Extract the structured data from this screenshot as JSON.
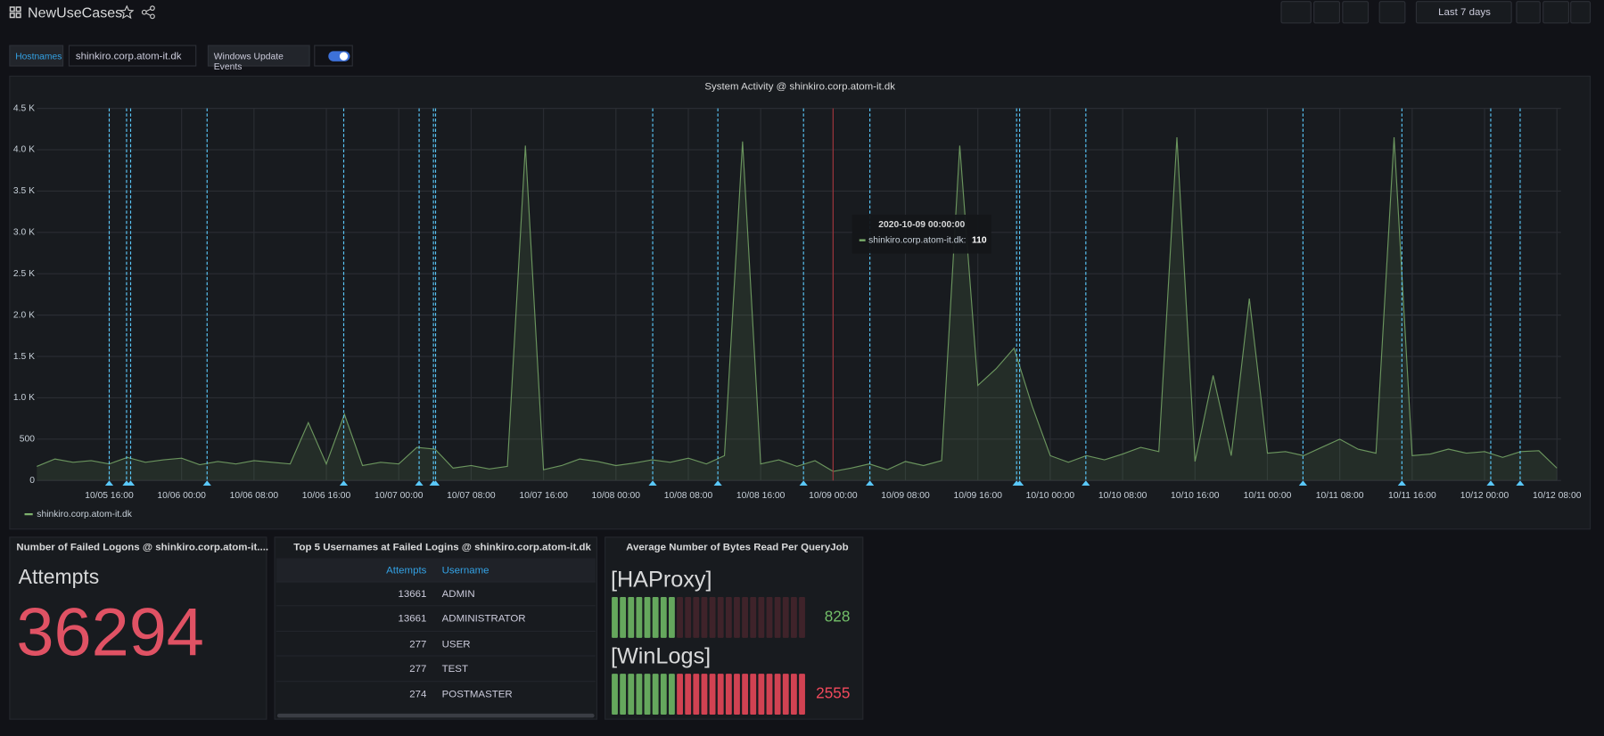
{
  "header": {
    "title": "NewUseCases",
    "time_range": "Last 7 days"
  },
  "variables": {
    "hostname_label": "Hostnames",
    "hostname": "shinkiro.corp.atom-it.dk",
    "toggle_label": "Windows Update Events",
    "toggle_on": true
  },
  "chart_data": {
    "type": "line",
    "title": "System Activity @ shinkiro.corp.atom-it.dk",
    "x": [
      "10/05 08:00",
      "10/05 10:00",
      "10/05 12:00",
      "10/05 14:00",
      "10/05 16:00",
      "10/05 18:00",
      "10/05 20:00",
      "10/05 22:00",
      "10/06 00:00",
      "10/06 02:00",
      "10/06 04:00",
      "10/06 06:00",
      "10/06 08:00",
      "10/06 10:00",
      "10/06 12:00",
      "10/06 14:00",
      "10/06 16:00",
      "10/06 18:00",
      "10/06 20:00",
      "10/06 22:00",
      "10/07 00:00",
      "10/07 02:00",
      "10/07 04:00",
      "10/07 06:00",
      "10/07 08:00",
      "10/07 10:00",
      "10/07 12:00",
      "10/07 14:00",
      "10/07 16:00",
      "10/07 18:00",
      "10/07 20:00",
      "10/07 22:00",
      "10/08 00:00",
      "10/08 02:00",
      "10/08 04:00",
      "10/08 06:00",
      "10/08 08:00",
      "10/08 10:00",
      "10/08 12:00",
      "10/08 14:00",
      "10/08 16:00",
      "10/08 18:00",
      "10/08 20:00",
      "10/08 22:00",
      "10/09 00:00",
      "10/09 02:00",
      "10/09 04:00",
      "10/09 06:00",
      "10/09 08:00",
      "10/09 10:00",
      "10/09 12:00",
      "10/09 14:00",
      "10/09 16:00",
      "10/09 18:00",
      "10/09 20:00",
      "10/09 22:00",
      "10/10 00:00",
      "10/10 02:00",
      "10/10 04:00",
      "10/10 06:00",
      "10/10 08:00",
      "10/10 10:00",
      "10/10 12:00",
      "10/10 14:00",
      "10/10 16:00",
      "10/10 18:00",
      "10/10 20:00",
      "10/10 22:00",
      "10/11 00:00",
      "10/11 02:00",
      "10/11 04:00",
      "10/11 06:00",
      "10/11 08:00",
      "10/11 10:00",
      "10/11 12:00",
      "10/11 14:00",
      "10/11 16:00",
      "10/11 18:00",
      "10/11 20:00",
      "10/11 22:00",
      "10/12 00:00",
      "10/12 02:00",
      "10/12 04:00",
      "10/12 06:00",
      "10/12 08:00"
    ],
    "series": [
      {
        "name": "shinkiro.corp.atom-it.dk",
        "color": "#7eb26d",
        "values": [
          170,
          260,
          220,
          240,
          200,
          280,
          220,
          250,
          270,
          190,
          230,
          200,
          240,
          220,
          200,
          700,
          200,
          800,
          180,
          220,
          200,
          400,
          380,
          150,
          180,
          140,
          170,
          4050,
          130,
          180,
          260,
          230,
          180,
          210,
          250,
          220,
          270,
          200,
          300,
          4100,
          200,
          250,
          170,
          240,
          110,
          150,
          200,
          130,
          230,
          180,
          240,
          4050,
          1150,
          1350,
          1600,
          900,
          300,
          220,
          300,
          250,
          320,
          400,
          350,
          4150,
          230,
          1270,
          300,
          2200,
          330,
          350,
          300,
          400,
          500,
          380,
          330,
          4150,
          300,
          320,
          380,
          330,
          350,
          280,
          350,
          360,
          150
        ]
      }
    ],
    "ylim": [
      0,
      4500
    ],
    "yticks": [
      {
        "value": 0,
        "label": "0"
      },
      {
        "value": 500,
        "label": "500"
      },
      {
        "value": 1000,
        "label": "1.0 K"
      },
      {
        "value": 1500,
        "label": "1.5 K"
      },
      {
        "value": 2000,
        "label": "2.0 K"
      },
      {
        "value": 2500,
        "label": "2.5 K"
      },
      {
        "value": 3000,
        "label": "3.0 K"
      },
      {
        "value": 3500,
        "label": "3.5 K"
      },
      {
        "value": 4000,
        "label": "4.0 K"
      },
      {
        "value": 4500,
        "label": "4.5 K"
      }
    ],
    "xticks": [
      "10/05 16:00",
      "10/06 00:00",
      "10/06 08:00",
      "10/06 16:00",
      "10/07 00:00",
      "10/07 08:00",
      "10/07 16:00",
      "10/08 00:00",
      "10/08 08:00",
      "10/08 16:00",
      "10/09 00:00",
      "10/09 08:00",
      "10/09 16:00",
      "10/10 00:00",
      "10/10 08:00",
      "10/10 16:00",
      "10/11 00:00",
      "10/11 08:00",
      "10/11 16:00",
      "10/12 00:00",
      "10/12 08:00"
    ],
    "grid": true,
    "annotations": [
      "10/05 16:00",
      "10/05 17:55",
      "10/05 18:22",
      "10/06 02:49",
      "10/06 17:55",
      "10/07 02:15",
      "10/07 03:50",
      "10/07 04:04",
      "10/08 04:04",
      "10/08 11:16",
      "10/08 20:44",
      "10/09 04:04",
      "10/09 20:17",
      "10/09 20:37",
      "10/10 03:56",
      "10/11 03:56",
      "10/11 14:52",
      "10/12 00:41",
      "10/12 03:56"
    ],
    "annotation_color": "#5ac8fa",
    "tooltip": {
      "time": "2020-10-09 00:00:00",
      "label": "shinkiro.corp.atom-it.dk:",
      "value": 110
    }
  },
  "stat": {
    "title": "Number of Failed Logons @ shinkiro.corp.atom-it....",
    "label": "Attempts",
    "value": 36294
  },
  "table": {
    "title": "Top 5 Usernames at Failed Logins @ shinkiro.corp.atom-it.dk",
    "columns": [
      "Attempts",
      "Username"
    ],
    "rows": [
      [
        13661,
        "ADMIN"
      ],
      [
        13661,
        "ADMINISTRATOR"
      ],
      [
        277,
        "USER"
      ],
      [
        277,
        "TEST"
      ],
      [
        274,
        "POSTMASTER"
      ]
    ]
  },
  "bargauge": {
    "title": "Average Number of Bytes Read Per QueryJob",
    "max": 2600,
    "threshold": 850,
    "colors": [
      "#73bf69",
      "#f2495c"
    ],
    "items": [
      {
        "name": "[HAProxy]",
        "value": 828
      },
      {
        "name": "[WinLogs]",
        "value": 2555
      }
    ]
  }
}
